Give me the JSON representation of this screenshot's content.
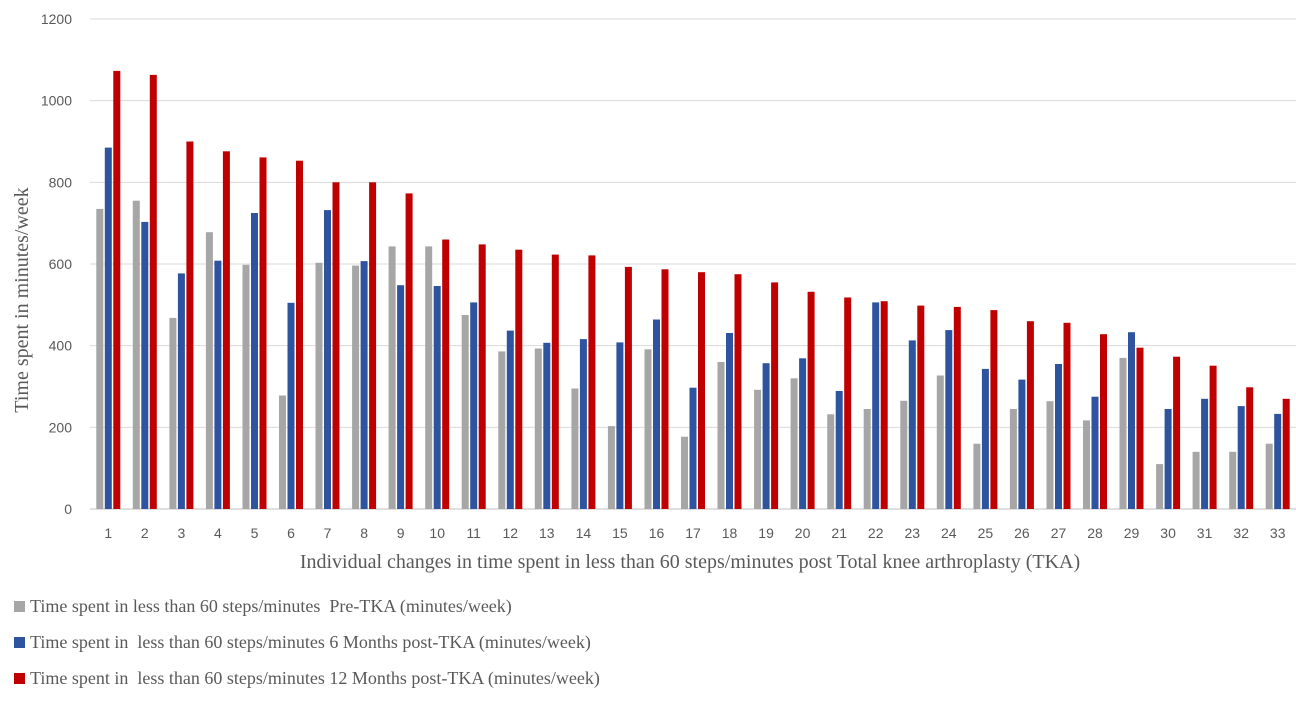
{
  "chart_data": {
    "type": "bar",
    "title": "",
    "xlabel": "Individual changes in time spent in less than 60 steps/minutes post Total knee arthroplasty (TKA)",
    "ylabel": "Time spent in minutes/week",
    "ylim": [
      0,
      1200
    ],
    "yticks": [
      "0",
      "200",
      "400",
      "600",
      "800",
      "1000",
      "1200"
    ],
    "grid": true,
    "legend_position": "bottom-left",
    "categories": [
      "1",
      "2",
      "3",
      "4",
      "5",
      "6",
      "7",
      "8",
      "9",
      "10",
      "11",
      "12",
      "13",
      "14",
      "15",
      "16",
      "17",
      "18",
      "19",
      "20",
      "21",
      "22",
      "23",
      "24",
      "25",
      "26",
      "27",
      "28",
      "29",
      "30",
      "31",
      "32",
      "33"
    ],
    "series": [
      {
        "name": "Time spent in less than 60 steps/minutes  Pre-TKA (minutes/week)",
        "color": "#a6a6a6",
        "values": [
          735,
          755,
          468,
          678,
          598,
          278,
          603,
          596,
          643,
          643,
          475,
          386,
          393,
          295,
          203,
          391,
          177,
          360,
          292,
          320,
          232,
          245,
          265,
          327,
          160,
          245,
          264,
          217,
          370,
          110,
          140,
          140,
          160
        ]
      },
      {
        "name": "Time spent in  less than 60 steps/minutes 6 Months post-TKA (minutes/week)",
        "color": "#2e54a0",
        "values": [
          885,
          703,
          577,
          608,
          725,
          505,
          732,
          607,
          548,
          546,
          506,
          437,
          407,
          416,
          408,
          464,
          297,
          431,
          357,
          369,
          289,
          506,
          413,
          438,
          343,
          317,
          355,
          275,
          433,
          245,
          270,
          252,
          233
        ]
      },
      {
        "name": "Time spent in  less than 60 steps/minutes 12 Months post-TKA (minutes/week)",
        "color": "#c00000",
        "values": [
          1073,
          1063,
          900,
          876,
          861,
          853,
          800,
          800,
          773,
          660,
          648,
          635,
          623,
          621,
          593,
          587,
          580,
          575,
          555,
          532,
          518,
          509,
          498,
          495,
          487,
          460,
          456,
          428,
          395,
          373,
          351,
          298,
          270
        ]
      }
    ]
  }
}
